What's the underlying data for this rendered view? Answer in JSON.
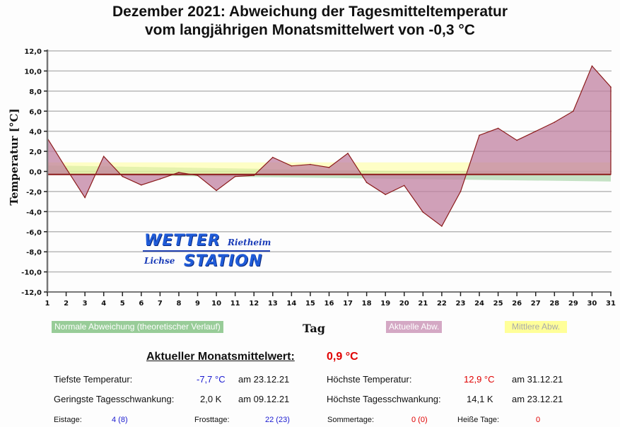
{
  "chart_data": {
    "type": "area",
    "title": "Dezember 2021: Abweichung der Tagesmitteltemperatur",
    "subtitle": "vom langjährigen Monatsmittelwert von -0,3 °C",
    "xlabel": "Tag",
    "ylabel": "Temperatur [°C]",
    "ylim": [
      -12,
      12
    ],
    "xlim": [
      1,
      31
    ],
    "baseline": -0.3,
    "grid": true,
    "y_ticks": [
      "12,0",
      "10,0",
      "8,0",
      "6,0",
      "4,0",
      "2,0",
      "0,0",
      "-2,0",
      "-4,0",
      "-6,0",
      "-8,0",
      "-10,0",
      "-12,0"
    ],
    "y_tick_values": [
      12,
      10,
      8,
      6,
      4,
      2,
      0,
      -2,
      -4,
      -6,
      -8,
      -10,
      -12
    ],
    "x": [
      1,
      2,
      3,
      4,
      5,
      6,
      7,
      8,
      9,
      10,
      11,
      12,
      13,
      14,
      15,
      16,
      17,
      18,
      19,
      20,
      21,
      22,
      23,
      24,
      25,
      26,
      27,
      28,
      29,
      30,
      31
    ],
    "series": [
      {
        "name": "Aktuelle Abw.",
        "color": "#c080a0",
        "values": [
          3.3,
          0.3,
          -2.6,
          1.5,
          -0.5,
          -1.35,
          -0.75,
          -0.1,
          -0.4,
          -1.9,
          -0.5,
          -0.4,
          1.4,
          0.55,
          0.7,
          0.4,
          1.8,
          -1.1,
          -2.3,
          -1.4,
          -4.05,
          -5.45,
          -2.0,
          3.6,
          4.3,
          3.1,
          4.0,
          4.9,
          6.0,
          10.5,
          8.4
        ]
      },
      {
        "name": "Mittlere Abw.",
        "color": "#ffff99",
        "range": [
          -0.3,
          0.9
        ]
      },
      {
        "name": "Normale Abweichung (theoretischer Verlauf)",
        "color": "#98cc98",
        "upper": [
          0.6,
          -0.3
        ],
        "lower": [
          -0.3,
          -1.0
        ]
      }
    ],
    "legend": [
      "Normale Abweichung (theoretischer Verlauf)",
      "Aktuelle Abw.",
      "Mittlere Abw."
    ]
  },
  "logo": {
    "line1": "WETTER",
    "line1_small": "Rietheim",
    "line2_small": "Lichse",
    "line2": "STATION"
  },
  "stats": {
    "monthly_mean_label": "Aktueller Monatsmittelwert:",
    "monthly_mean_value": "0,9 °C",
    "min_temp_label": "Tiefste Temperatur:",
    "min_temp_value": "-7,7 °C",
    "min_temp_date": "am 23.12.21",
    "max_temp_label": "Höchste Temperatur:",
    "max_temp_value": "12,9 °C",
    "max_temp_date": "am 31.12.21",
    "min_range_label": "Geringste Tagesschwankung:",
    "min_range_value": "2,0 K",
    "min_range_date": "am 09.12.21",
    "max_range_label": "Höchste Tagesschwankung:",
    "max_range_value": "14,1 K",
    "max_range_date": "am 23.12.21",
    "ice_days_label": "Eistage:",
    "ice_days_value": "4 (8)",
    "frost_days_label": "Frosttage:",
    "frost_days_value": "22 (23)",
    "summer_days_label": "Sommertage:",
    "summer_days_value": "0 (0)",
    "hot_days_label": "Heiße Tage:",
    "hot_days_value": "0"
  }
}
